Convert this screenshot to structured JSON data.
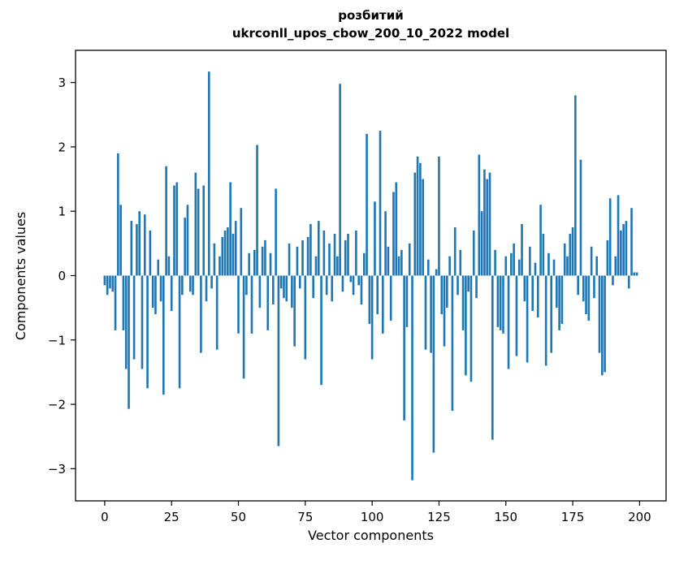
{
  "chart_data": {
    "type": "bar",
    "title_line1": "розбитий",
    "title_line2": "ukrconll_upos_cbow_200_10_2022 model",
    "xlabel": "Vector components",
    "ylabel": "Components values",
    "bar_color": "#1f77b4",
    "xlim": [
      -10.9,
      209.9
    ],
    "ylim": [
      -3.5,
      3.5
    ],
    "x_ticks": [
      0,
      25,
      50,
      75,
      100,
      125,
      150,
      175,
      200
    ],
    "y_ticks": [
      {
        "v": -3,
        "label": "−3"
      },
      {
        "v": -2,
        "label": "−2"
      },
      {
        "v": -1,
        "label": "−1"
      },
      {
        "v": 0,
        "label": "0"
      },
      {
        "v": 1,
        "label": "1"
      },
      {
        "v": 2,
        "label": "2"
      },
      {
        "v": 3,
        "label": "3"
      }
    ],
    "x": "index 0..199",
    "values": [
      -0.15,
      -0.3,
      -0.2,
      -0.25,
      -0.85,
      1.9,
      1.1,
      -0.85,
      -1.45,
      -2.07,
      0.85,
      -1.3,
      0.8,
      1.0,
      -1.45,
      0.95,
      -1.75,
      0.7,
      -0.5,
      -0.6,
      0.25,
      -0.4,
      -1.85,
      1.7,
      0.3,
      -0.55,
      1.4,
      1.45,
      -1.75,
      -0.3,
      0.9,
      1.1,
      -0.25,
      -0.3,
      1.6,
      1.35,
      -1.2,
      1.4,
      -0.4,
      3.17,
      -0.2,
      0.5,
      -1.15,
      0.3,
      0.6,
      0.7,
      0.75,
      1.45,
      0.65,
      0.85,
      -0.9,
      1.05,
      -1.6,
      -0.3,
      0.35,
      -0.9,
      0.4,
      2.03,
      -0.5,
      0.45,
      0.55,
      -0.85,
      0.35,
      -0.45,
      1.35,
      -2.65,
      -0.2,
      -0.35,
      -0.4,
      0.5,
      -0.5,
      -1.1,
      0.45,
      -0.2,
      0.55,
      -1.3,
      0.6,
      0.8,
      -0.35,
      0.3,
      0.85,
      -1.7,
      0.7,
      -0.3,
      0.5,
      -0.4,
      0.65,
      0.3,
      2.98,
      -0.25,
      0.55,
      0.65,
      -0.1,
      -0.3,
      0.7,
      -0.15,
      -0.45,
      0.35,
      2.2,
      -0.75,
      -1.3,
      1.15,
      -0.6,
      2.25,
      -0.9,
      1.0,
      0.45,
      -0.7,
      1.3,
      1.45,
      0.3,
      0.4,
      -2.25,
      -0.8,
      0.5,
      -3.18,
      1.6,
      1.85,
      1.75,
      1.5,
      -1.15,
      0.25,
      -1.2,
      -2.75,
      0.1,
      1.85,
      -0.6,
      -1.1,
      -0.5,
      0.3,
      -2.1,
      0.75,
      -0.3,
      0.4,
      -0.85,
      -1.55,
      -0.25,
      -1.65,
      0.7,
      -0.35,
      1.88,
      1.0,
      1.65,
      1.5,
      1.6,
      -2.55,
      0.4,
      -0.8,
      -0.85,
      -0.9,
      0.3,
      -1.45,
      0.35,
      0.5,
      -1.25,
      0.25,
      0.8,
      -0.4,
      -1.35,
      0.45,
      -0.55,
      0.2,
      -0.65,
      1.1,
      0.65,
      -1.4,
      0.35,
      -1.2,
      0.25,
      -0.5,
      -0.85,
      -0.75,
      0.5,
      0.3,
      0.65,
      0.75,
      2.8,
      -0.3,
      1.8,
      -0.4,
      -0.6,
      -0.7,
      0.45,
      -0.35,
      0.3,
      -1.2,
      -1.55,
      -1.5,
      0.55,
      1.2,
      -0.15,
      0.3,
      1.25,
      0.7,
      0.8,
      0.85,
      -0.2,
      1.05,
      0.05,
      0.05
    ]
  }
}
